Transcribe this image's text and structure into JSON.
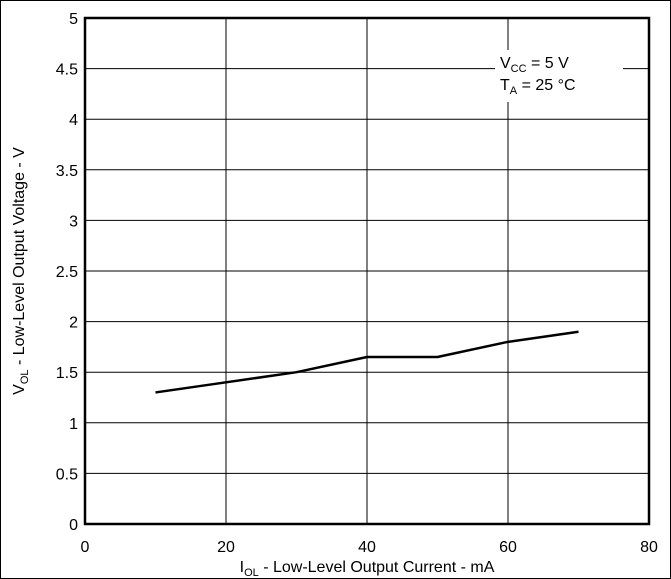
{
  "chart_data": {
    "type": "line",
    "title": "",
    "xlabel": {
      "main": "I",
      "sub": "OL",
      "rest": " - Low-Level Output Current - mA"
    },
    "ylabel": {
      "main": "V",
      "sub": "OL",
      "rest": " - Low-Level Output Voltage - V"
    },
    "xlim": [
      0,
      80
    ],
    "ylim": [
      0,
      5
    ],
    "xticks": [
      "0",
      "20",
      "40",
      "60",
      "80"
    ],
    "yticks": [
      "0",
      "0.5",
      "1",
      "1.5",
      "2",
      "2.5",
      "3",
      "3.5",
      "4",
      "4.5",
      "5"
    ],
    "grid": true,
    "series": [
      {
        "x": [
          10,
          20,
          30,
          40,
          50,
          60,
          70
        ],
        "y": [
          1.3,
          1.4,
          1.5,
          1.65,
          1.65,
          1.8,
          1.9
        ]
      }
    ],
    "annotations": [
      {
        "main": "V",
        "sub": "CC",
        "rest": " = 5 V"
      },
      {
        "main": "T",
        "sub": "A",
        "rest": " = 25 °C"
      }
    ]
  }
}
